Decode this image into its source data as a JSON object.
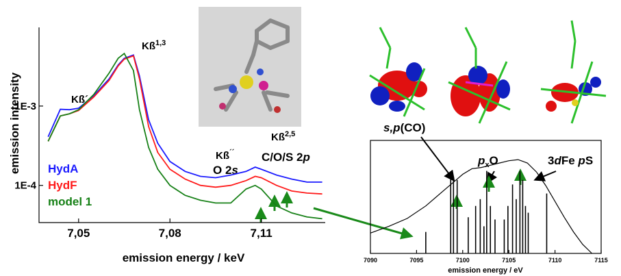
{
  "chart_data": [
    {
      "type": "line",
      "xlabel": "emission energy / keV",
      "ylabel": "emission intensity",
      "log_y": true,
      "xlim": [
        7.037,
        7.131
      ],
      "ylim": [
        3.4e-05,
        0.0098
      ],
      "xticks": [
        {
          "value": 7.05,
          "label": "7,05"
        },
        {
          "value": 7.08,
          "label": "7,08"
        },
        {
          "value": 7.11,
          "label": "7,11"
        }
      ],
      "yticks": [
        {
          "value": 0.001,
          "label": "1E-3"
        },
        {
          "value": 0.0001,
          "label": "1E-4"
        }
      ],
      "x": [
        7.04,
        7.044,
        7.047,
        7.05,
        7.055,
        7.06,
        7.063,
        7.065,
        7.068,
        7.07,
        7.073,
        7.076,
        7.08,
        7.085,
        7.09,
        7.095,
        7.1,
        7.105,
        7.108,
        7.11,
        7.115,
        7.12,
        7.125,
        7.13
      ],
      "series": [
        {
          "name": "HydA",
          "color": "#1a1aff",
          "values": [
            0.00041,
            0.00091,
            0.0009,
            0.00094,
            0.00135,
            0.0022,
            0.0033,
            0.004,
            0.0044,
            0.0024,
            0.00067,
            0.00034,
            0.0002,
            0.00015,
            0.00013,
            0.000125,
            0.000135,
            0.00015,
            0.00017,
            0.00016,
            0.000135,
            0.00012,
            0.00011,
            0.00011
          ]
        },
        {
          "name": "HydF",
          "color": "#ff1a1a",
          "values": [
            0.00036,
            0.00075,
            0.0008,
            0.00088,
            0.0013,
            0.0021,
            0.0032,
            0.0039,
            0.0043,
            0.0022,
            0.00055,
            0.00026,
            0.00016,
            0.00012,
            0.0001,
            9.5e-05,
            0.0001,
            0.000115,
            0.00013,
            0.000125,
            0.0001,
            8.5e-05,
            8e-05,
            7.8e-05
          ]
        },
        {
          "name": "model 1",
          "color": "#168016",
          "values": [
            0.00036,
            0.00075,
            0.0008,
            0.0009,
            0.0014,
            0.0026,
            0.004,
            0.0046,
            0.0028,
            0.0009,
            0.0003,
            0.00016,
            0.0001,
            7.5e-05,
            6.5e-05,
            6e-05,
            6e-05,
            9e-05,
            0.0001,
            9e-05,
            5.5e-05,
            4.5e-05,
            4e-05,
            3.8e-05
          ]
        }
      ],
      "annotations": [
        [
          "Kß´"
        ],
        [
          "Kß",
          "1,3"
        ],
        [
          "Kß",
          "´´"
        ],
        [
          "O 2",
          "s"
        ],
        [
          "Kß",
          "2,5"
        ],
        [
          "C/O/S 2",
          "p"
        ]
      ]
    },
    {
      "type": "stick",
      "xlabel": "emission energy / eV",
      "xlim": [
        7090,
        7115
      ],
      "ylim": [
        0,
        1
      ],
      "xticks": [
        7090,
        7095,
        7100,
        7105,
        7110,
        7115
      ],
      "color": "#000000",
      "x": [
        7096.0,
        7098.7,
        7099.0,
        7099.4,
        7100.6,
        7101.4,
        7101.9,
        7102.3,
        7102.6,
        7103.0,
        7103.5,
        7104.5,
        7104.9,
        7105.4,
        7105.8,
        7106.2,
        7106.5,
        7106.8,
        7107.1,
        7109.1
      ],
      "values": [
        0.19,
        0.67,
        0.68,
        0.65,
        0.32,
        0.42,
        0.48,
        0.24,
        0.73,
        0.42,
        0.3,
        0.3,
        0.42,
        0.61,
        0.48,
        0.73,
        0.65,
        0.42,
        0.36,
        0.53
      ],
      "envelope": {
        "x": [
          7090,
          7092,
          7094,
          7096,
          7098,
          7099,
          7100,
          7101,
          7102,
          7103,
          7104,
          7105,
          7106,
          7107,
          7108,
          7109,
          7110,
          7111,
          7112,
          7113,
          7114
        ],
        "values": [
          0.18,
          0.24,
          0.31,
          0.42,
          0.56,
          0.63,
          0.7,
          0.75,
          0.76,
          0.78,
          0.8,
          0.82,
          0.83,
          0.8,
          0.72,
          0.6,
          0.46,
          0.32,
          0.19,
          0.08,
          0.0
        ]
      },
      "annotations": [
        [
          "s,p",
          "(CO)"
        ],
        [
          "p",
          "x",
          "O"
        ],
        [
          "3",
          "d",
          "Fe ",
          "p",
          "S"
        ]
      ]
    }
  ]
}
